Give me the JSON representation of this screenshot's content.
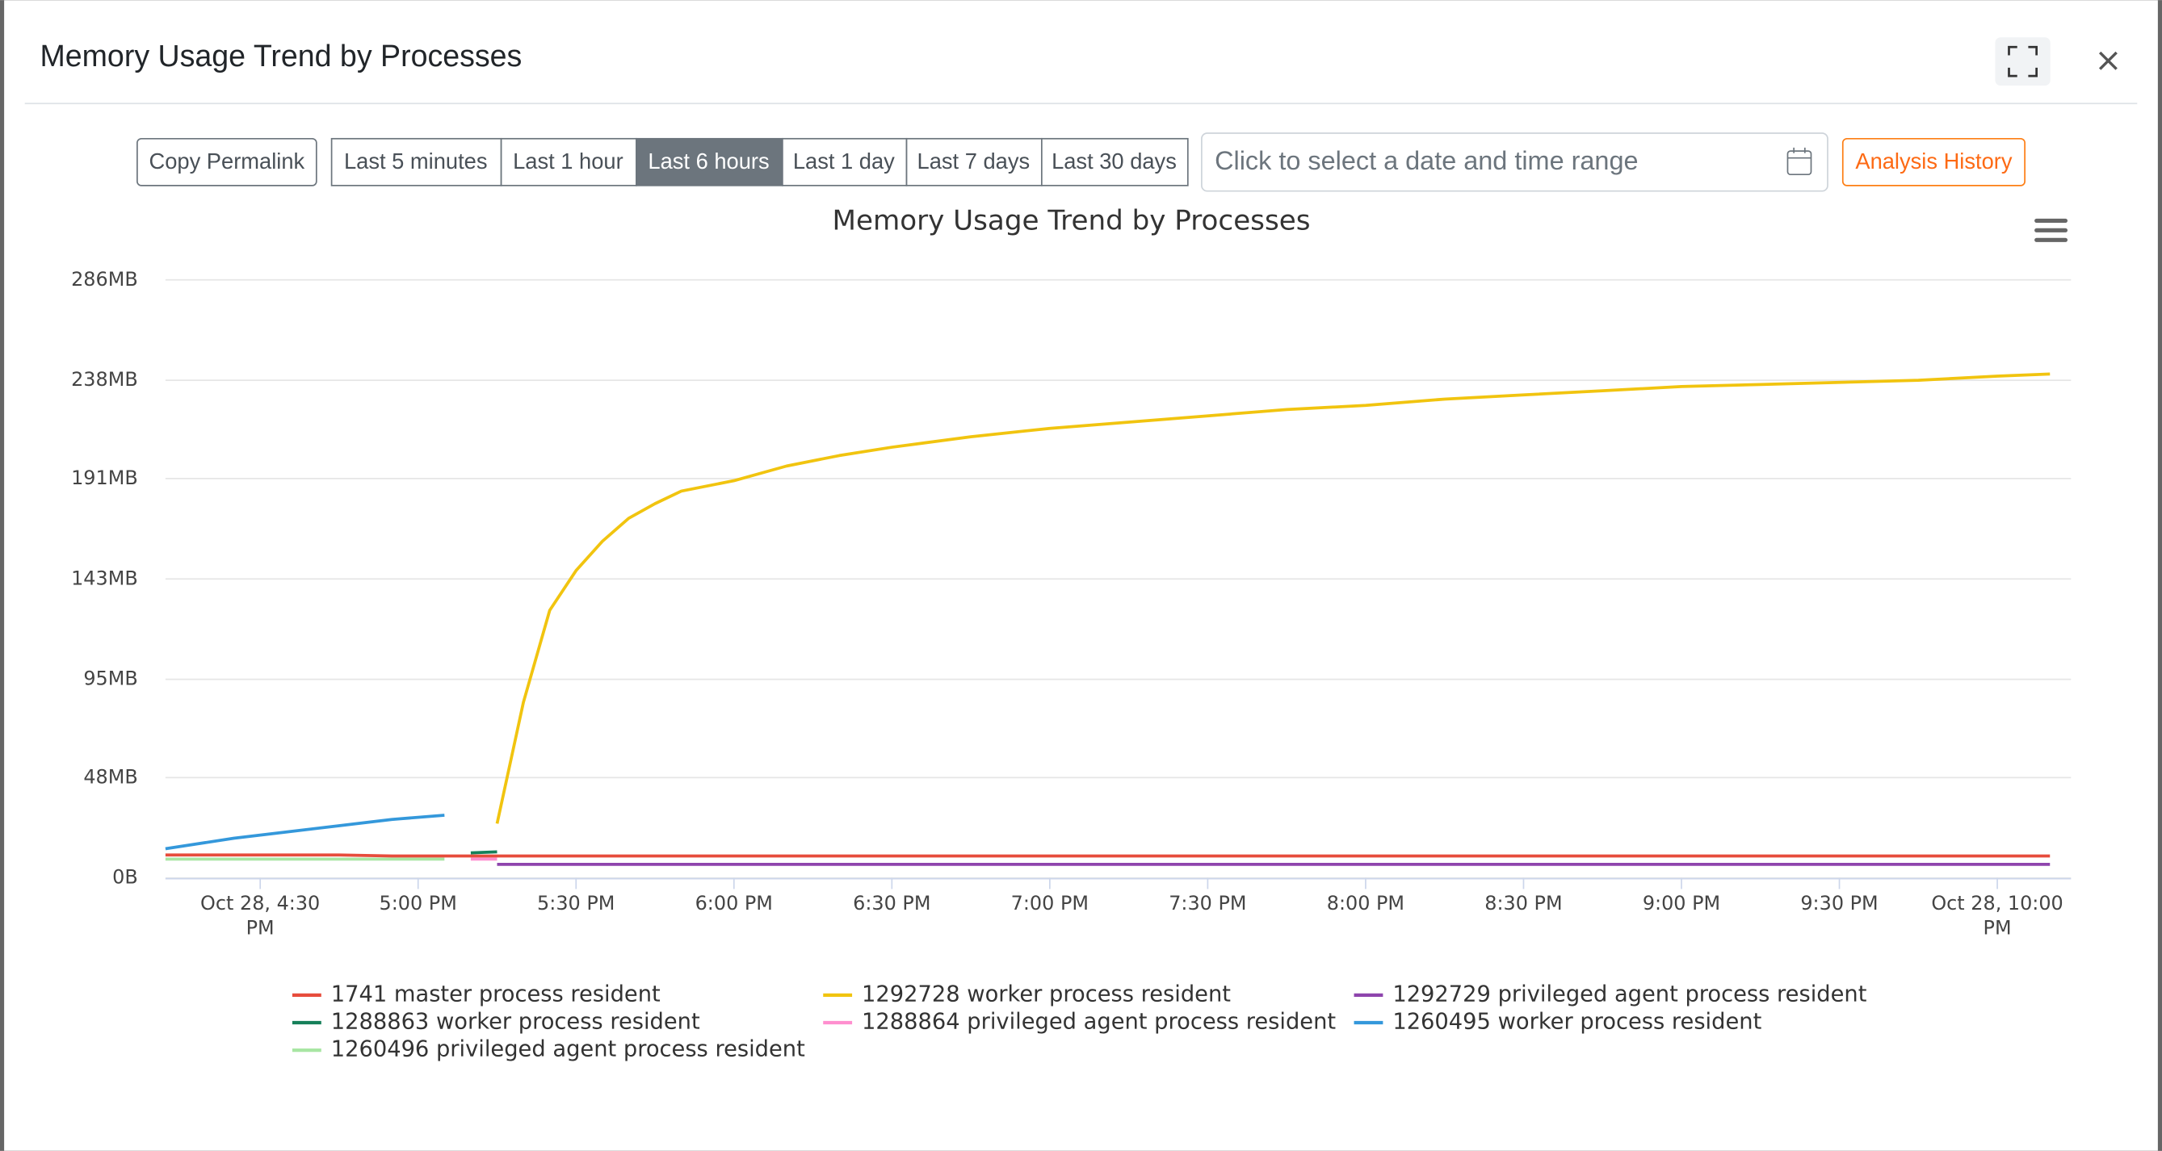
{
  "header": {
    "title": "Memory Usage Trend by Processes"
  },
  "toolbar": {
    "copy_permalink": "Copy Permalink",
    "ranges": [
      "Last 5 minutes",
      "Last 1 hour",
      "Last 6 hours",
      "Last 1 day",
      "Last 7 days",
      "Last 30 days"
    ],
    "active_range": 2,
    "date_placeholder": "Click to select a date and time range",
    "analysis_history": "Analysis History"
  },
  "chart_data": {
    "type": "line",
    "title": "Memory Usage Trend by Processes",
    "x": [
      "16:12",
      "16:25",
      "16:35",
      "16:45",
      "16:55",
      "17:05",
      "17:10",
      "17:15",
      "17:20",
      "17:25",
      "17:30",
      "17:35",
      "17:40",
      "17:45",
      "17:50",
      "18:00",
      "18:10",
      "18:20",
      "18:30",
      "18:45",
      "19:00",
      "19:15",
      "19:30",
      "19:45",
      "20:00",
      "20:15",
      "20:30",
      "20:45",
      "21:00",
      "21:15",
      "21:30",
      "21:45",
      "22:00",
      "22:10"
    ],
    "xlim": [
      "16:12",
      "22:14"
    ],
    "xticks": [
      {
        "value": "16:30",
        "label": "Oct 28, 4:30 PM"
      },
      {
        "value": "17:00",
        "label": "5:00 PM"
      },
      {
        "value": "17:30",
        "label": "5:30 PM"
      },
      {
        "value": "18:00",
        "label": "6:00 PM"
      },
      {
        "value": "18:30",
        "label": "6:30 PM"
      },
      {
        "value": "19:00",
        "label": "7:00 PM"
      },
      {
        "value": "19:30",
        "label": "7:30 PM"
      },
      {
        "value": "20:00",
        "label": "8:00 PM"
      },
      {
        "value": "20:30",
        "label": "8:30 PM"
      },
      {
        "value": "21:00",
        "label": "9:00 PM"
      },
      {
        "value": "21:30",
        "label": "9:30 PM"
      },
      {
        "value": "22:00",
        "label": "Oct 28, 10:00 PM"
      }
    ],
    "ylim": [
      0,
      286
    ],
    "yticks": [
      {
        "value": 0,
        "label": "0B"
      },
      {
        "value": 48,
        "label": "48MB"
      },
      {
        "value": 95,
        "label": "95MB"
      },
      {
        "value": 143,
        "label": "143MB"
      },
      {
        "value": 191,
        "label": "191MB"
      },
      {
        "value": 238,
        "label": "238MB"
      },
      {
        "value": 286,
        "label": "286MB"
      }
    ],
    "grid": true,
    "series": [
      {
        "name": "1741 master process resident",
        "color": "#e74c3c",
        "values": [
          11,
          11,
          11,
          11,
          10.5,
          10.5,
          10.5,
          10.5,
          10.5,
          10.5,
          10.5,
          10.5,
          10.5,
          10.5,
          10.5,
          10.5,
          10.5,
          10.5,
          10.5,
          10.5,
          10.5,
          10.5,
          10.5,
          10.5,
          10.5,
          10.5,
          10.5,
          10.5,
          10.5,
          10.5,
          10.5,
          10.5,
          10.5,
          10.5
        ]
      },
      {
        "name": "1292728 worker process resident",
        "color": "#f1c40f",
        "values": [
          null,
          null,
          null,
          null,
          null,
          null,
          null,
          26,
          84,
          128,
          147,
          161,
          172,
          179,
          185,
          190,
          197,
          202,
          206,
          211,
          215,
          218,
          221,
          224,
          226,
          229,
          231,
          233,
          235,
          236,
          237,
          238,
          240,
          241
        ]
      },
      {
        "name": "1292729 privileged agent process resident",
        "color": "#8e44ad",
        "values": [
          null,
          null,
          null,
          null,
          null,
          null,
          null,
          6.5,
          6.5,
          6.5,
          6.5,
          6.5,
          6.5,
          6.5,
          6.5,
          6.5,
          6.5,
          6.5,
          6.5,
          6.5,
          6.5,
          6.5,
          6.5,
          6.5,
          6.5,
          6.5,
          6.5,
          6.5,
          6.5,
          6.5,
          6.5,
          6.5,
          6.5,
          6.5
        ]
      },
      {
        "name": "1288863 worker process resident",
        "color": "#16805a",
        "values": [
          null,
          null,
          null,
          null,
          null,
          null,
          12,
          12.5,
          null,
          null,
          null,
          null,
          null,
          null,
          null,
          null,
          null,
          null,
          null,
          null,
          null,
          null,
          null,
          null,
          null,
          null,
          null,
          null,
          null,
          null,
          null,
          null,
          null,
          null
        ]
      },
      {
        "name": "1288864 privileged agent process resident",
        "color": "#ff8fcf",
        "values": [
          null,
          null,
          null,
          null,
          null,
          null,
          9,
          9,
          null,
          null,
          null,
          null,
          null,
          null,
          null,
          null,
          null,
          null,
          null,
          null,
          null,
          null,
          null,
          null,
          null,
          null,
          null,
          null,
          null,
          null,
          null,
          null,
          null,
          null
        ]
      },
      {
        "name": "1260495 worker process resident",
        "color": "#3498db",
        "values": [
          14,
          19,
          22,
          25,
          28,
          30,
          null,
          null,
          null,
          null,
          null,
          null,
          null,
          null,
          null,
          null,
          null,
          null,
          null,
          null,
          null,
          null,
          null,
          null,
          null,
          null,
          null,
          null,
          null,
          null,
          null,
          null,
          null,
          null
        ]
      },
      {
        "name": "1260496 privileged agent process resident",
        "color": "#a8e6a3",
        "values": [
          9,
          9,
          9,
          9,
          9,
          9,
          null,
          null,
          null,
          null,
          null,
          null,
          null,
          null,
          null,
          null,
          null,
          null,
          null,
          null,
          null,
          null,
          null,
          null,
          null,
          null,
          null,
          null,
          null,
          null,
          null,
          null,
          null,
          null
        ]
      }
    ]
  }
}
